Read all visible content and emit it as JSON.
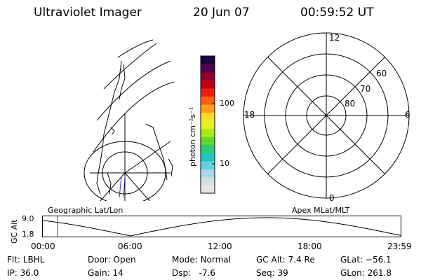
{
  "header": {
    "instrument": "Ultraviolet Imager",
    "date": "20 Jun 07",
    "time": "00:59:52 UT"
  },
  "colorbar": {
    "unit_label": "photon cm⁻²s⁻¹",
    "tick_100": "100",
    "tick_10": "10",
    "colors": [
      "#e8e8e8",
      "#d0e0e8",
      "#a8d8e8",
      "#60d0e0",
      "#20c8c0",
      "#30c870",
      "#60d830",
      "#a8e818",
      "#e8f020",
      "#ffd828",
      "#ffa018",
      "#ff6010",
      "#f02010",
      "#c00018",
      "#900030",
      "#500050",
      "#200040"
    ]
  },
  "polar_plot": {
    "mlt_labels": {
      "top": "12",
      "left": "18",
      "right": "6",
      "bottom": "0"
    },
    "lat_labels": [
      "60",
      "70",
      "80"
    ]
  },
  "map_labels": {
    "left": "Geographic Lat/Lon",
    "right": "Apex MLat/MLT"
  },
  "altitude_strip": {
    "axis_title": "GC Alt",
    "y_top_label": "9.0",
    "y_bottom_label": "1.8",
    "time_ticks": [
      "00:00",
      "06:00",
      "12:00",
      "18:00",
      "23:59"
    ],
    "current_time_marker_hours": 1.0
  },
  "status": {
    "flt_label": "Flt:",
    "flt_value": "LBHL",
    "ip_label": "IP:",
    "ip_value": "36.0",
    "door_label": "Door:",
    "door_value": "Open",
    "gain_label": "Gain:",
    "gain_value": "14",
    "mode_label": "Mode:",
    "mode_value": "Normal",
    "dsp_label": "Dsp:",
    "dsp_value": "-7.6",
    "gcalt_label": "GC Alt:",
    "gcalt_value": "7.4 Re",
    "seq_label": "Seq:",
    "seq_value": "39",
    "glat_label": "GLat:",
    "glat_value": "−56.1",
    "glon_label": "GLon:",
    "glon_value": "261.8"
  }
}
